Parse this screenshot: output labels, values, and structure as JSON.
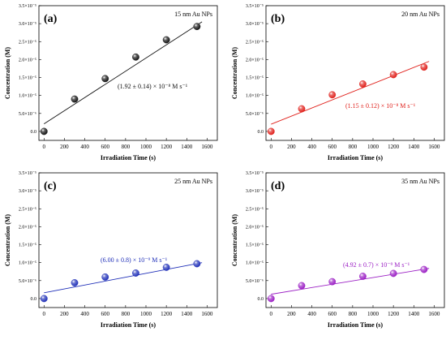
{
  "chart_data": [
    {
      "type": "scatter",
      "panel_label": "(a)",
      "np_label": "15 nm Au NPs",
      "rate_label": "(1.92 ± 0.14) × 10⁻⁸ M s⁻¹",
      "color": "#111111",
      "xlabel": "Irradiation Time (s)",
      "ylabel": "Concentration (M)",
      "xlim": [
        -50,
        1700
      ],
      "ylim": [
        -2.5e-06,
        3.5e-05
      ],
      "x_ticks": [
        "0",
        "200",
        "400",
        "600",
        "800",
        "1000",
        "1200",
        "1400",
        "1600"
      ],
      "y_ticks": [
        "0.0",
        "5.0×10⁻⁶",
        "1.0×10⁻⁵",
        "1.5×10⁻⁵",
        "2.0×10⁻⁵",
        "2.5×10⁻⁵",
        "3.0×10⁻⁵",
        "3.5×10⁻⁵"
      ],
      "series": [
        {
          "x": [
            0,
            300,
            600,
            900,
            1200,
            1500
          ],
          "y": [
            0.0,
            9e-06,
            1.47e-05,
            2.07e-05,
            2.55e-05,
            2.92e-05
          ],
          "fit": [
            [
              0,
              2.1e-06
            ],
            [
              1550,
              3.05e-05
            ]
          ]
        }
      ]
    },
    {
      "type": "scatter",
      "panel_label": "(b)",
      "np_label": "20 nm Au NPs",
      "rate_label": "(1.15 ± 0.12) × 10⁻⁸ M s⁻¹",
      "color": "#e0201b",
      "xlabel": "Irradiation Time (s)",
      "ylabel": "Concentration (M)",
      "xlim": [
        -50,
        1700
      ],
      "ylim": [
        -2.5e-06,
        3.5e-05
      ],
      "x_ticks": [
        "0",
        "200",
        "400",
        "600",
        "800",
        "1000",
        "1200",
        "1400",
        "1600"
      ],
      "y_ticks": [
        "0.0",
        "5.0×10⁻⁶",
        "1.0×10⁻⁵",
        "1.5×10⁻⁵",
        "2.0×10⁻⁵",
        "2.5×10⁻⁵",
        "3.0×10⁻⁵",
        "3.5×10⁻⁵"
      ],
      "series": [
        {
          "x": [
            0,
            300,
            600,
            900,
            1200,
            1500
          ],
          "y": [
            0.0,
            6.3e-06,
            1.02e-05,
            1.32e-05,
            1.58e-05,
            1.79e-05
          ],
          "fit": [
            [
              0,
              2e-06
            ],
            [
              1550,
              1.95e-05
            ]
          ]
        }
      ]
    },
    {
      "type": "scatter",
      "panel_label": "(c)",
      "np_label": "25 nm Au NPs",
      "rate_label": "(6.00 ± 0.8) × 10⁻⁹ M s⁻¹",
      "color": "#1f2fb8",
      "xlabel": "Irradiation Time (s)",
      "ylabel": "Concentration (M)",
      "xlim": [
        -50,
        1700
      ],
      "ylim": [
        -2.5e-06,
        3.5e-05
      ],
      "x_ticks": [
        "0",
        "200",
        "400",
        "600",
        "800",
        "1000",
        "1200",
        "1400",
        "1600"
      ],
      "y_ticks": [
        "0.0",
        "5.0×10⁻⁶",
        "1.0×10⁻⁵",
        "1.5×10⁻⁵",
        "2.0×10⁻⁵",
        "2.5×10⁻⁵",
        "3.0×10⁻⁵",
        "3.5×10⁻⁵"
      ],
      "series": [
        {
          "x": [
            0,
            300,
            600,
            900,
            1200,
            1500
          ],
          "y": [
            0.0,
            4.4e-06,
            6e-06,
            7.1e-06,
            8.7e-06,
            9.7e-06
          ],
          "fit": [
            [
              0,
              1.6e-06
            ],
            [
              1550,
              1e-05
            ]
          ]
        }
      ]
    },
    {
      "type": "scatter",
      "panel_label": "(d)",
      "np_label": "35 nm Au NPs",
      "rate_label": "(4.92 ± 0.7) × 10⁻⁹ M s⁻¹",
      "color": "#9b1fc4",
      "xlabel": "Irradiation Time (s)",
      "ylabel": "Concentration (M)",
      "xlim": [
        -50,
        1700
      ],
      "ylim": [
        -2.5e-06,
        3.5e-05
      ],
      "x_ticks": [
        "0",
        "200",
        "400",
        "600",
        "800",
        "1000",
        "1200",
        "1400",
        "1600"
      ],
      "y_ticks": [
        "0.0",
        "5.0×10⁻⁶",
        "1.0×10⁻⁵",
        "1.5×10⁻⁵",
        "2.0×10⁻⁵",
        "2.5×10⁻⁵",
        "3.0×10⁻⁵",
        "3.5×10⁻⁵"
      ],
      "series": [
        {
          "x": [
            0,
            300,
            600,
            900,
            1200,
            1500
          ],
          "y": [
            0.0,
            3.6e-06,
            4.7e-06,
            6.2e-06,
            7e-06,
            8.1e-06
          ],
          "fit": [
            [
              0,
              1.2e-06
            ],
            [
              1550,
              8.4e-06
            ]
          ]
        }
      ]
    }
  ]
}
